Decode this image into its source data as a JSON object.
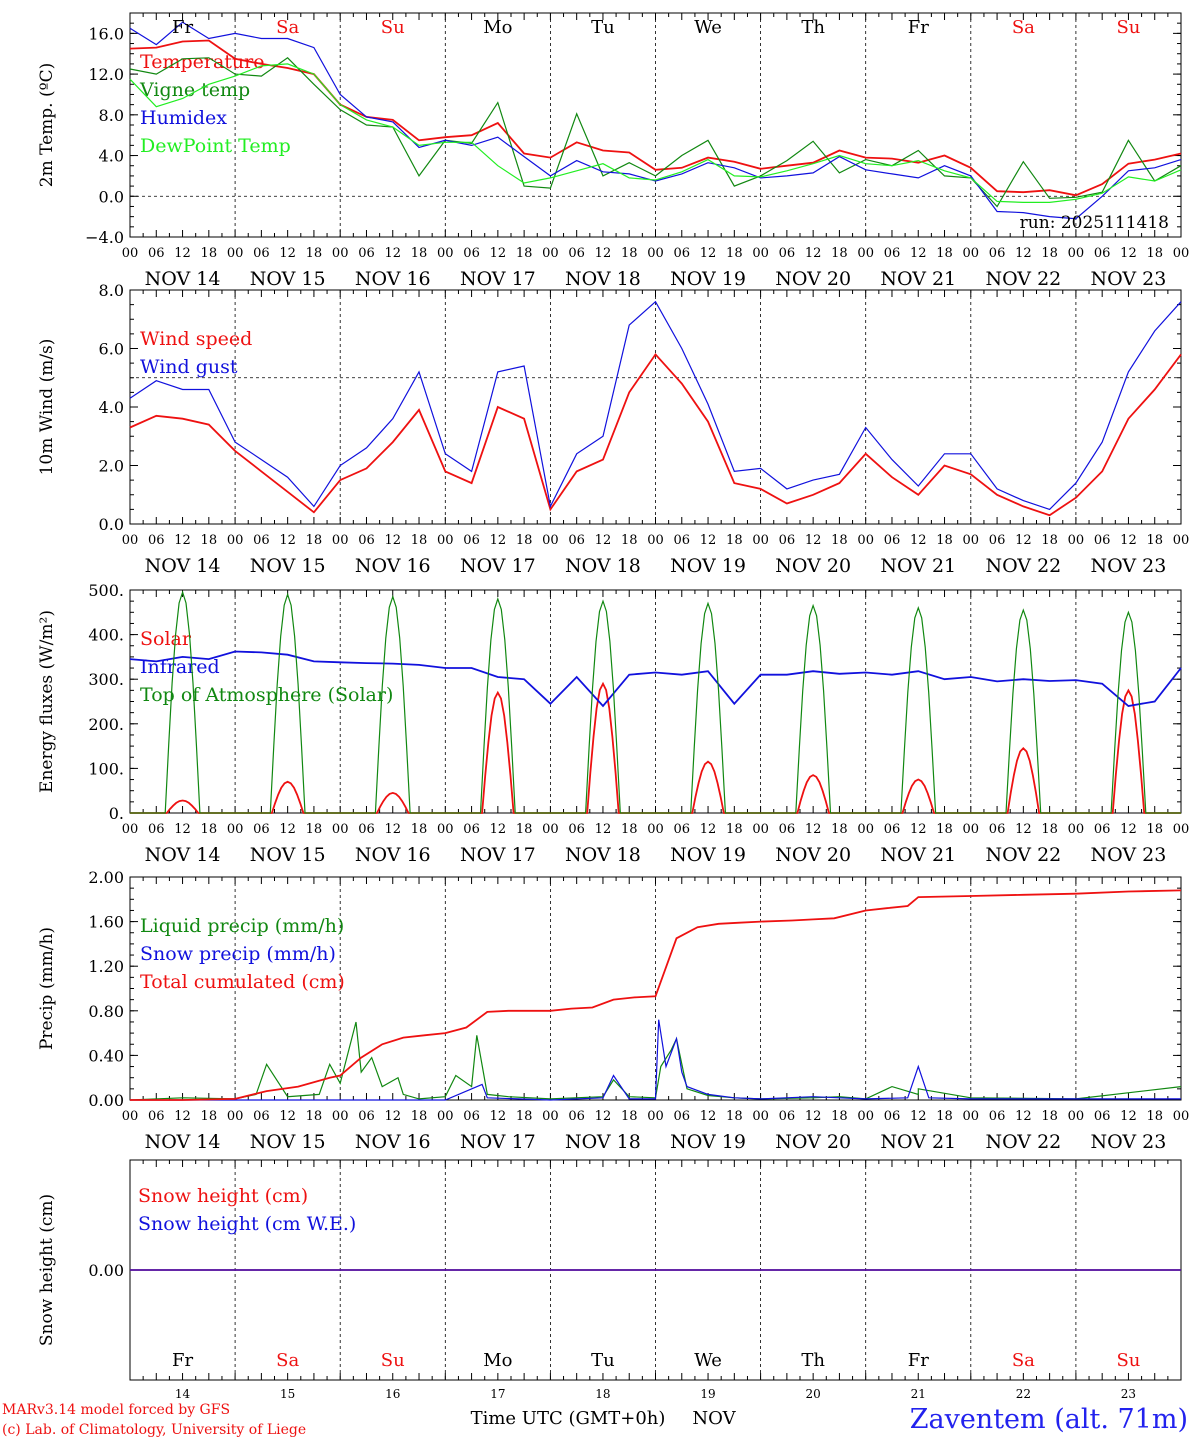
{
  "footer": {
    "model_line": "MARv3.14 model forced by GFS",
    "credit_line": "(c) Lab. of Climatology, University of Liege",
    "time_label": "Time UTC (GMT+0h)",
    "month_label": "NOV",
    "station": "Zaventem (alt. 71m)"
  },
  "colors": {
    "red": "#ee1111",
    "green": "#118811",
    "blue": "#1111dd",
    "lightgreen": "#22ee22",
    "weekend": "#ee1111",
    "weekday": "#000000",
    "station": "#2222ee"
  },
  "time_axis": {
    "hour_ticks": [
      "00",
      "06",
      "12",
      "18"
    ],
    "final_tick": "00",
    "dates": [
      "NOV 14",
      "NOV 15",
      "NOV 16",
      "NOV 17",
      "NOV 18",
      "NOV 19",
      "NOV 20",
      "NOV 21",
      "NOV 22",
      "NOV 23"
    ],
    "weekdays": [
      "Fr",
      "Sa",
      "Su",
      "Mo",
      "Tu",
      "We",
      "Th",
      "Fr",
      "Sa",
      "Su"
    ],
    "weekend": [
      false,
      true,
      true,
      false,
      false,
      false,
      false,
      false,
      true,
      true
    ],
    "day_numbers": [
      "14",
      "15",
      "16",
      "17",
      "18",
      "19",
      "20",
      "21",
      "22",
      "23"
    ]
  },
  "chart_data": [
    {
      "type": "line",
      "ylabel": "2m Temp. (ºC)",
      "ylim": [
        -4,
        18
      ],
      "yticks": [
        -4,
        0,
        4,
        8,
        12,
        16
      ],
      "ytick_labels": [
        "−4.0",
        "0.0",
        "4.0",
        "8.0",
        "12.0",
        "16.0"
      ],
      "reference_line": 0,
      "x_unit": "days since NOV 14 00 UTC",
      "annotation": "run: 2025111418",
      "series": [
        {
          "name": "Temperature",
          "color": "red",
          "x": [
            0,
            0.25,
            0.5,
            0.75,
            1,
            1.25,
            1.5,
            1.75,
            2,
            2.25,
            2.5,
            2.75,
            3,
            3.25,
            3.5,
            3.75,
            4,
            4.25,
            4.5,
            4.75,
            5,
            5.25,
            5.5,
            5.75,
            6,
            6.25,
            6.5,
            6.75,
            7,
            7.25,
            7.5,
            7.75,
            8,
            8.25,
            8.5,
            8.75,
            9,
            9.25,
            9.5,
            9.75,
            10
          ],
          "y": [
            14.5,
            14.6,
            15.2,
            15.3,
            13.5,
            13.0,
            12.6,
            12.0,
            9.0,
            7.8,
            7.5,
            5.5,
            5.8,
            6.0,
            7.2,
            4.2,
            3.8,
            5.3,
            4.5,
            4.3,
            2.6,
            2.8,
            3.8,
            3.4,
            2.7,
            3.0,
            3.3,
            4.5,
            3.8,
            3.7,
            3.3,
            4.0,
            2.8,
            0.5,
            0.4,
            0.6,
            0.1,
            1.2,
            3.2,
            3.6,
            4.2
          ]
        },
        {
          "name": "Vigne temp",
          "color": "green",
          "x": [
            0,
            0.25,
            0.5,
            0.75,
            1,
            1.25,
            1.5,
            1.75,
            2,
            2.25,
            2.5,
            2.75,
            3,
            3.25,
            3.5,
            3.75,
            4,
            4.25,
            4.5,
            4.75,
            5,
            5.25,
            5.5,
            5.75,
            6,
            6.25,
            6.5,
            6.75,
            7,
            7.25,
            7.5,
            7.75,
            8,
            8.25,
            8.5,
            8.75,
            9,
            9.25,
            9.5,
            9.75,
            10
          ],
          "y": [
            12.5,
            12.0,
            13.5,
            13.6,
            12.0,
            11.8,
            13.6,
            11.0,
            8.5,
            7.0,
            6.8,
            2.0,
            5.5,
            5.2,
            9.2,
            1.0,
            0.8,
            8.1,
            2.0,
            3.3,
            2.0,
            4.0,
            5.5,
            1.0,
            2.0,
            3.5,
            5.4,
            2.3,
            3.6,
            3.0,
            4.5,
            2.0,
            1.8,
            -1.0,
            3.4,
            -0.2,
            -0.1,
            0.4,
            5.5,
            1.5,
            3.0
          ]
        },
        {
          "name": "Humidex",
          "color": "blue",
          "x": [
            0,
            0.25,
            0.5,
            0.75,
            1,
            1.25,
            1.5,
            1.75,
            2,
            2.25,
            2.5,
            2.75,
            3,
            3.25,
            3.5,
            3.75,
            4,
            4.25,
            4.5,
            4.75,
            5,
            5.25,
            5.5,
            5.75,
            6,
            6.25,
            6.5,
            6.75,
            7,
            7.25,
            7.5,
            7.75,
            8,
            8.25,
            8.5,
            8.75,
            9,
            9.25,
            9.5,
            9.75,
            10
          ],
          "y": [
            16.5,
            14.9,
            17.1,
            15.5,
            16.0,
            15.5,
            15.5,
            14.6,
            10.0,
            7.8,
            7.3,
            4.8,
            5.5,
            5.0,
            5.8,
            3.9,
            2.0,
            3.5,
            2.4,
            2.2,
            1.5,
            2.2,
            3.3,
            2.8,
            1.8,
            2.0,
            2.3,
            3.9,
            2.6,
            2.2,
            1.8,
            3.0,
            2.0,
            -1.5,
            -1.6,
            -2.0,
            -2.2,
            0.0,
            2.5,
            2.8,
            3.6
          ]
        },
        {
          "name": "DewPoint Temp",
          "color": "lightgreen",
          "x": [
            0,
            0.25,
            0.5,
            0.75,
            1,
            1.25,
            1.5,
            1.75,
            2,
            2.25,
            2.5,
            2.75,
            3,
            3.25,
            3.5,
            3.75,
            4,
            4.25,
            4.5,
            4.75,
            5,
            5.25,
            5.5,
            5.75,
            6,
            6.25,
            6.5,
            6.75,
            7,
            7.25,
            7.5,
            7.75,
            8,
            8.25,
            8.5,
            8.75,
            9,
            9.25,
            9.5,
            9.75,
            10
          ],
          "y": [
            11.5,
            8.8,
            9.6,
            11.0,
            11.8,
            12.8,
            13.0,
            12.0,
            9.0,
            7.5,
            6.8,
            5.0,
            5.3,
            5.3,
            3.0,
            1.3,
            1.8,
            2.5,
            3.2,
            1.8,
            1.6,
            2.4,
            3.6,
            2.0,
            1.9,
            2.5,
            3.2,
            4.0,
            3.2,
            3.0,
            3.5,
            2.5,
            1.8,
            -0.5,
            -0.6,
            -0.6,
            -0.3,
            0.3,
            1.9,
            1.5,
            2.6
          ]
        }
      ]
    },
    {
      "type": "line",
      "ylabel": "10m Wind (m/s)",
      "ylim": [
        0,
        8
      ],
      "yticks": [
        0,
        2,
        4,
        6,
        8
      ],
      "ytick_labels": [
        "0.0",
        "2.0",
        "4.0",
        "6.0",
        "8.0"
      ],
      "reference_line": 5,
      "x_unit": "days since NOV 14 00 UTC",
      "series": [
        {
          "name": "Wind speed",
          "color": "red",
          "x": [
            0,
            0.25,
            0.5,
            0.75,
            1,
            1.25,
            1.5,
            1.75,
            2,
            2.25,
            2.5,
            2.75,
            3,
            3.25,
            3.5,
            3.75,
            4,
            4.25,
            4.5,
            4.75,
            5,
            5.25,
            5.5,
            5.75,
            6,
            6.25,
            6.5,
            6.75,
            7,
            7.25,
            7.5,
            7.75,
            8,
            8.25,
            8.5,
            8.75,
            9,
            9.25,
            9.5,
            9.75,
            10
          ],
          "y": [
            3.3,
            3.7,
            3.6,
            3.4,
            2.5,
            1.8,
            1.1,
            0.4,
            1.5,
            1.9,
            2.8,
            3.9,
            1.8,
            1.4,
            4.0,
            3.6,
            0.5,
            1.8,
            2.2,
            4.5,
            5.8,
            4.8,
            3.5,
            1.4,
            1.2,
            0.7,
            1.0,
            1.4,
            2.4,
            1.6,
            1.0,
            2.0,
            1.7,
            1.0,
            0.6,
            0.3,
            0.9,
            1.8,
            3.6,
            4.6,
            5.8
          ]
        },
        {
          "name": "Wind gust",
          "color": "blue",
          "x": [
            0,
            0.25,
            0.5,
            0.75,
            1,
            1.25,
            1.5,
            1.75,
            2,
            2.25,
            2.5,
            2.75,
            3,
            3.25,
            3.5,
            3.75,
            4,
            4.25,
            4.5,
            4.75,
            5,
            5.25,
            5.5,
            5.75,
            6,
            6.25,
            6.5,
            6.75,
            7,
            7.25,
            7.5,
            7.75,
            8,
            8.25,
            8.5,
            8.75,
            9,
            9.25,
            9.5,
            9.75,
            10
          ],
          "y": [
            4.3,
            4.9,
            4.6,
            4.6,
            2.8,
            2.2,
            1.6,
            0.6,
            2.0,
            2.6,
            3.6,
            5.2,
            2.4,
            1.8,
            5.2,
            5.4,
            0.6,
            2.4,
            3.0,
            6.8,
            7.6,
            6.0,
            4.1,
            1.8,
            1.9,
            1.2,
            1.5,
            1.7,
            3.3,
            2.2,
            1.3,
            2.4,
            2.4,
            1.2,
            0.8,
            0.5,
            1.4,
            2.8,
            5.2,
            6.6,
            7.6
          ]
        }
      ]
    },
    {
      "type": "line",
      "ylabel": "Energy fluxes (W/m²)",
      "ylim": [
        0,
        500
      ],
      "yticks": [
        0,
        100,
        200,
        300,
        400,
        500
      ],
      "ytick_labels": [
        "0.",
        "100.",
        "200.",
        "300.",
        "400.",
        "500."
      ],
      "x_unit": "days since NOV 14 00 UTC",
      "series": [
        {
          "name": "Solar",
          "color": "red",
          "daily_peak_at_noon": [
            28,
            70,
            45,
            270,
            290,
            115,
            85,
            75,
            145,
            275
          ],
          "day_length": [
            0.3,
            0.3,
            0.3,
            0.3,
            0.3,
            0.3,
            0.3,
            0.3,
            0.3,
            0.3
          ]
        },
        {
          "name": "Infrared",
          "color": "blue",
          "x": [
            0,
            0.25,
            0.5,
            0.75,
            1,
            1.25,
            1.5,
            1.75,
            2,
            2.25,
            2.5,
            2.75,
            3,
            3.25,
            3.5,
            3.75,
            4,
            4.25,
            4.5,
            4.75,
            5,
            5.25,
            5.5,
            5.75,
            6,
            6.25,
            6.5,
            6.75,
            7,
            7.25,
            7.5,
            7.75,
            8,
            8.25,
            8.5,
            8.75,
            9,
            9.25,
            9.5,
            9.75,
            10
          ],
          "y": [
            345,
            340,
            350,
            345,
            362,
            360,
            355,
            340,
            338,
            336,
            335,
            332,
            325,
            325,
            305,
            300,
            245,
            305,
            240,
            310,
            315,
            310,
            318,
            245,
            310,
            310,
            318,
            312,
            315,
            310,
            318,
            300,
            305,
            295,
            300,
            296,
            298,
            290,
            240,
            250,
            325
          ]
        },
        {
          "name": "Top of Atmosphere (Solar)",
          "color": "green",
          "daily_peak_at_noon": [
            495,
            490,
            485,
            480,
            475,
            470,
            465,
            460,
            455,
            450
          ],
          "day_length": [
            0.33,
            0.33,
            0.33,
            0.33,
            0.33,
            0.33,
            0.33,
            0.33,
            0.33,
            0.33
          ]
        }
      ]
    },
    {
      "type": "line",
      "ylabel": "Precip (mm/h)",
      "ylim": [
        0,
        2
      ],
      "yticks": [
        0,
        0.4,
        0.8,
        1.2,
        1.6,
        2.0
      ],
      "ytick_labels": [
        "0.00",
        "0.40",
        "0.80",
        "1.20",
        "1.60",
        "2.00"
      ],
      "x_unit": "days since NOV 14 00 UTC",
      "series": [
        {
          "name": "Liquid precip (mm/h)",
          "color": "green",
          "x": [
            0,
            0.5,
            1,
            1.2,
            1.3,
            1.5,
            1.8,
            1.9,
            2,
            2.15,
            2.2,
            2.3,
            2.4,
            2.55,
            2.6,
            2.75,
            3,
            3.1,
            3.25,
            3.3,
            3.4,
            3.6,
            4,
            4.5,
            4.6,
            4.75,
            5,
            5.05,
            5.15,
            5.2,
            5.3,
            5.5,
            5.75,
            6,
            6.5,
            6.75,
            7,
            7.25,
            7.5,
            7.5,
            8,
            9,
            10
          ],
          "y": [
            0,
            0.02,
            0.01,
            0.05,
            0.32,
            0.03,
            0.05,
            0.32,
            0.15,
            0.7,
            0.25,
            0.38,
            0.12,
            0.2,
            0.05,
            0.01,
            0.03,
            0.22,
            0.12,
            0.58,
            0.05,
            0.03,
            0.01,
            0.03,
            0.18,
            0.03,
            0.02,
            0.3,
            0.45,
            0.55,
            0.1,
            0.04,
            0.02,
            0.01,
            0.02,
            0.03,
            0.01,
            0.12,
            0.05,
            0.1,
            0.02,
            0.01,
            0.12
          ]
        },
        {
          "name": "Snow precip (mm/h)",
          "color": "blue",
          "x": [
            0,
            1,
            2,
            3,
            3.35,
            3.4,
            4,
            4.5,
            4.6,
            4.75,
            5,
            5.03,
            5.1,
            5.2,
            5.25,
            5.3,
            5.5,
            5.75,
            6,
            6.5,
            6.75,
            7,
            7.4,
            7.5,
            7.6,
            8,
            9,
            10
          ],
          "y": [
            0,
            0,
            0,
            0,
            0.14,
            0.02,
            0,
            0.02,
            0.22,
            0.01,
            0.01,
            0.72,
            0.3,
            0.55,
            0.25,
            0.12,
            0.05,
            0.02,
            0.01,
            0.03,
            0.02,
            0.01,
            0.02,
            0.3,
            0.02,
            0.01,
            0.01,
            0.01
          ]
        },
        {
          "name": "Total cumulated (cm)",
          "color": "red",
          "x": [
            0,
            0.5,
            1,
            1.3,
            1.6,
            1.9,
            2,
            2.2,
            2.4,
            2.6,
            2.8,
            3,
            3.2,
            3.4,
            3.6,
            4,
            4.2,
            4.4,
            4.6,
            4.8,
            5,
            5.2,
            5.4,
            5.6,
            5.8,
            6,
            6.3,
            6.5,
            6.7,
            7,
            7.2,
            7.4,
            7.5,
            8,
            8.5,
            9,
            9.5,
            10
          ],
          "y": [
            0,
            0,
            0.01,
            0.08,
            0.12,
            0.2,
            0.22,
            0.38,
            0.5,
            0.56,
            0.58,
            0.6,
            0.65,
            0.79,
            0.8,
            0.8,
            0.82,
            0.83,
            0.9,
            0.92,
            0.93,
            1.45,
            1.55,
            1.58,
            1.59,
            1.6,
            1.61,
            1.62,
            1.63,
            1.7,
            1.72,
            1.74,
            1.82,
            1.83,
            1.84,
            1.85,
            1.87,
            1.88
          ]
        }
      ]
    },
    {
      "type": "line",
      "ylabel": "Snow height (cm)",
      "ylim": [
        -1,
        1
      ],
      "yticks": [
        0
      ],
      "ytick_labels": [
        "0.00"
      ],
      "x_unit": "days since NOV 14 00 UTC",
      "series": [
        {
          "name": "Snow height (cm)",
          "color": "red",
          "x": [
            0,
            10
          ],
          "y": [
            0,
            0
          ]
        },
        {
          "name": "Snow height (cm W.E.)",
          "color": "blue",
          "x": [
            0,
            10
          ],
          "y": [
            0,
            0
          ]
        }
      ]
    }
  ]
}
